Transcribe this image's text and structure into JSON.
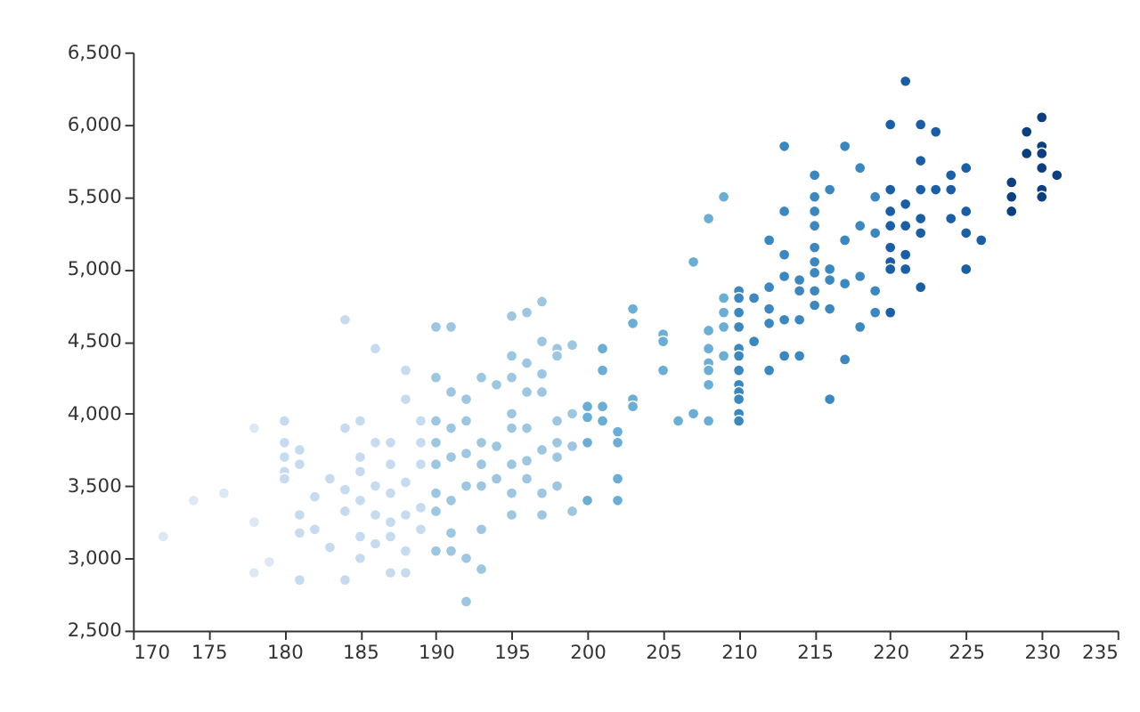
{
  "chart_data": {
    "type": "scatter",
    "marker": "circle",
    "grid": false,
    "xlim": [
      170,
      235
    ],
    "xticks": [
      170,
      175,
      180,
      185,
      190,
      195,
      200,
      205,
      210,
      215,
      220,
      225,
      230,
      235
    ],
    "ylim": [
      2500,
      6500
    ],
    "yticks": [
      {
        "value": 2500,
        "label": "2,500"
      },
      {
        "value": 3000,
        "label": "3,000"
      },
      {
        "value": 3500,
        "label": "3,500"
      },
      {
        "value": 4000,
        "label": "4,000"
      },
      {
        "value": 4500,
        "label": "4,500"
      },
      {
        "value": 5000,
        "label": "5,000"
      },
      {
        "value": 5500,
        "label": "5,500"
      },
      {
        "value": 6000,
        "label": "6,000"
      },
      {
        "value": 6500,
        "label": "6,500"
      }
    ],
    "series": [
      {
        "color": "#dde8f5",
        "x": [
          172,
          174,
          176,
          178,
          178,
          178,
          179
        ],
        "values": [
          3150,
          3400,
          3450,
          3900,
          3250,
          2900,
          2975
        ]
      },
      {
        "color": "#c6dbef",
        "x": [
          180,
          180,
          180,
          180,
          180,
          181,
          181,
          181,
          181,
          181,
          182,
          182,
          183,
          183,
          184,
          184,
          184,
          184,
          184,
          185,
          185,
          185,
          185,
          185,
          185,
          186,
          186,
          186,
          186,
          186,
          187,
          187,
          187,
          187,
          187,
          187,
          188,
          188,
          188,
          188,
          188,
          188,
          189,
          189,
          189,
          189,
          189
        ],
        "values": [
          3950,
          3800,
          3700,
          3600,
          3550,
          3750,
          3650,
          3300,
          3175,
          2850,
          3425,
          3200,
          3550,
          3075,
          4650,
          3900,
          3475,
          3325,
          2850,
          3950,
          3700,
          3600,
          3400,
          3150,
          3000,
          4450,
          3800,
          3500,
          3300,
          3100,
          3800,
          3650,
          3450,
          3250,
          3150,
          2900,
          4300,
          4100,
          3525,
          3300,
          3050,
          2900,
          3950,
          3800,
          3650,
          3350,
          3200
        ]
      },
      {
        "color": "#9dc6e0",
        "x": [
          190,
          190,
          190,
          190,
          190,
          190,
          190,
          190,
          191,
          191,
          191,
          191,
          191,
          191,
          191,
          192,
          192,
          192,
          192,
          192,
          192,
          193,
          193,
          193,
          193,
          193,
          193,
          194,
          194,
          194,
          195,
          195,
          195,
          195,
          195,
          195,
          195,
          195,
          196,
          196,
          196,
          196,
          196,
          196,
          197,
          197,
          197,
          197,
          197,
          197,
          197,
          198,
          198,
          198,
          198,
          198,
          198,
          199,
          199,
          199,
          199
        ],
        "values": [
          4600,
          4250,
          3950,
          3800,
          3650,
          3450,
          3325,
          3050,
          4600,
          4150,
          3900,
          3700,
          3400,
          3175,
          3050,
          4100,
          3950,
          3725,
          3500,
          3000,
          2700,
          4250,
          3800,
          3650,
          3500,
          3200,
          2925,
          4200,
          3775,
          3550,
          4675,
          4400,
          4250,
          4000,
          3900,
          3650,
          3450,
          3300,
          4700,
          4350,
          4150,
          3900,
          3675,
          3550,
          4775,
          4500,
          4275,
          4150,
          3750,
          3450,
          3300,
          4450,
          4400,
          3950,
          3800,
          3700,
          3500,
          4475,
          4000,
          3775,
          3325
        ]
      },
      {
        "color": "#6aaed6",
        "x": [
          200,
          200,
          200,
          200,
          201,
          201,
          201,
          201,
          202,
          202,
          202,
          202,
          203,
          203,
          203,
          203,
          205,
          205,
          205,
          206,
          207,
          207,
          208,
          208,
          208,
          208,
          208,
          208,
          208,
          209,
          209,
          209,
          209,
          209
        ],
        "values": [
          4050,
          3975,
          3800,
          3400,
          4450,
          4300,
          4050,
          3950,
          3875,
          3800,
          3550,
          3400,
          4725,
          4625,
          4100,
          4050,
          4550,
          4500,
          4300,
          3950,
          5050,
          4000,
          5350,
          4575,
          4450,
          4350,
          4300,
          4200,
          3950,
          5500,
          4800,
          4700,
          4600,
          4400
        ]
      },
      {
        "color": "#3b87c0",
        "x": [
          210,
          210,
          210,
          210,
          210,
          210,
          210,
          210,
          210,
          210,
          210,
          210,
          211,
          211,
          212,
          212,
          212,
          212,
          212,
          213,
          213,
          213,
          213,
          213,
          213,
          214,
          214,
          214,
          214,
          215,
          215,
          215,
          215,
          215,
          215,
          215,
          215,
          215,
          216,
          216,
          216,
          216,
          216,
          217,
          217,
          217,
          217,
          218,
          218,
          218,
          218,
          219,
          219,
          219,
          219
        ],
        "values": [
          4850,
          4800,
          4700,
          4600,
          4450,
          4400,
          4300,
          4200,
          4150,
          4100,
          4000,
          3950,
          4800,
          4500,
          5200,
          4875,
          4725,
          4625,
          4300,
          5850,
          5400,
          5100,
          4950,
          4650,
          4400,
          4925,
          4850,
          4650,
          4400,
          5650,
          5500,
          5400,
          5300,
          5150,
          5050,
          4975,
          4850,
          4750,
          5550,
          5000,
          4925,
          4725,
          4100,
          5850,
          5200,
          4900,
          4375,
          5700,
          5300,
          4950,
          4600,
          5500,
          5250,
          4850,
          4700
        ]
      },
      {
        "color": "#1a5fa5",
        "x": [
          220,
          220,
          220,
          220,
          220,
          220,
          220,
          220,
          221,
          221,
          221,
          221,
          221,
          222,
          222,
          222,
          222,
          222,
          222,
          223,
          223,
          224,
          224,
          224,
          225,
          225,
          225,
          225,
          226
        ],
        "values": [
          6000,
          5550,
          5400,
          5300,
          5150,
          5050,
          5000,
          4700,
          6300,
          5450,
          5300,
          5100,
          5000,
          6000,
          5750,
          5550,
          5350,
          5250,
          4875,
          5950,
          5550,
          5650,
          5550,
          5350,
          5700,
          5400,
          5250,
          5000,
          5200
        ]
      },
      {
        "color": "#0b3f80",
        "x": [
          228,
          228,
          228,
          229,
          229,
          230,
          230,
          230,
          230,
          230,
          230,
          231
        ],
        "values": [
          5600,
          5500,
          5400,
          5950,
          5800,
          6050,
          5850,
          5800,
          5700,
          5550,
          5500,
          5650
        ]
      }
    ]
  }
}
